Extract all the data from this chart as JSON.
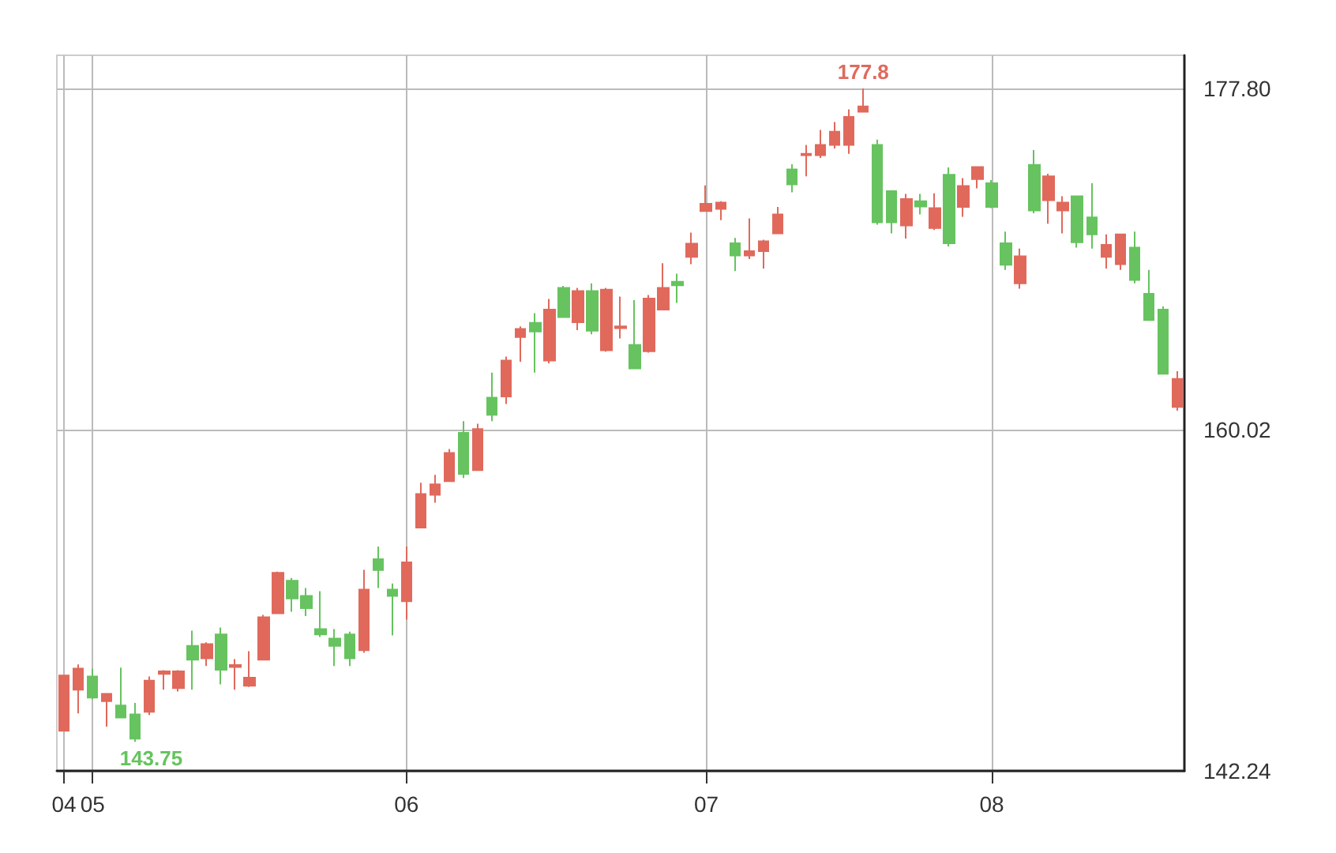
{
  "chart_data": {
    "type": "candlestick",
    "categories": [
      "04",
      null,
      "05",
      null,
      null,
      null,
      null,
      null,
      null,
      null,
      null,
      null,
      null,
      null,
      null,
      null,
      null,
      null,
      null,
      null,
      null,
      null,
      null,
      null,
      "06",
      null,
      null,
      null,
      null,
      null,
      null,
      null,
      null,
      null,
      null,
      null,
      null,
      null,
      null,
      null,
      null,
      null,
      null,
      null,
      null,
      "07",
      null,
      null,
      null,
      null,
      null,
      null,
      null,
      null,
      null,
      null,
      null,
      null,
      null,
      null,
      null,
      null,
      null,
      null,
      null,
      "08",
      null,
      null,
      null,
      null,
      null,
      null,
      null,
      null,
      null,
      null,
      null,
      null,
      null
    ],
    "ohlc": [
      [
        144.33,
        147.21,
        144.33,
        147.21
      ],
      [
        146.47,
        147.79,
        145.23,
        147.57
      ],
      [
        147.16,
        147.57,
        145.97,
        146.06
      ],
      [
        145.87,
        146.25,
        144.55,
        146.25
      ],
      [
        145.65,
        147.62,
        145.02,
        145.02
      ],
      [
        145.18,
        145.78,
        143.75,
        143.92
      ],
      [
        145.32,
        147.16,
        145.15,
        146.94
      ],
      [
        147.29,
        147.49,
        146.47,
        147.43
      ],
      [
        146.55,
        147.49,
        146.38,
        147.43
      ],
      [
        148.75,
        149.55,
        146.47,
        148.03
      ],
      [
        148.11,
        148.94,
        147.7,
        148.85
      ],
      [
        149.35,
        149.71,
        146.75,
        147.51
      ],
      [
        147.65,
        148.06,
        146.47,
        147.76
      ],
      [
        146.67,
        148.48,
        146.61,
        147.1
      ],
      [
        148.03,
        150.37,
        148.03,
        150.25
      ],
      [
        150.45,
        152.62,
        150.45,
        152.56
      ],
      [
        152.15,
        152.29,
        150.53,
        151.22
      ],
      [
        151.36,
        151.77,
        150.31,
        150.72
      ],
      [
        149.63,
        151.6,
        149.22,
        149.35
      ],
      [
        149.13,
        149.63,
        147.7,
        148.75
      ],
      [
        149.35,
        149.49,
        147.7,
        148.11
      ],
      [
        148.53,
        152.72,
        148.39,
        151.69
      ],
      [
        153.27,
        153.93,
        151.77,
        152.7
      ],
      [
        151.69,
        152.01,
        149.3,
        151.36
      ],
      [
        151.08,
        153.93,
        150.12,
        153.11
      ],
      [
        154.92,
        157.25,
        154.92,
        156.67
      ],
      [
        156.62,
        157.66,
        156.21,
        157.17
      ],
      [
        157.34,
        159.01,
        157.34,
        158.81
      ],
      [
        159.86,
        160.46,
        157.5,
        157.72
      ],
      [
        157.91,
        160.33,
        157.91,
        160.05
      ],
      [
        161.69,
        162.99,
        160.46,
        160.79
      ],
      [
        161.75,
        163.83,
        161.36,
        163.62
      ],
      [
        164.85,
        165.4,
        163.56,
        165.27
      ],
      [
        165.59,
        166.09,
        162.99,
        165.13
      ],
      [
        163.62,
        166.83,
        163.48,
        166.28
      ],
      [
        167.41,
        167.51,
        165.89,
        165.89
      ],
      [
        165.62,
        167.41,
        165.21,
        167.24
      ],
      [
        167.24,
        167.65,
        164.99,
        165.18
      ],
      [
        164.16,
        167.41,
        164.08,
        167.32
      ],
      [
        165.31,
        166.96,
        164.77,
        165.4
      ],
      [
        164.44,
        166.77,
        163.21,
        163.21
      ],
      [
        164.11,
        167.04,
        164.03,
        166.85
      ],
      [
        166.28,
        168.69,
        166.28,
        167.41
      ],
      [
        167.73,
        168.15,
        166.63,
        167.54
      ],
      [
        169.02,
        170.29,
        168.64,
        169.71
      ],
      [
        171.41,
        172.75,
        171.41,
        171.79
      ],
      [
        171.52,
        171.93,
        170.94,
        171.85
      ],
      [
        169.73,
        170.01,
        168.28,
        169.1
      ],
      [
        169.1,
        171.03,
        168.91,
        169.32
      ],
      [
        169.32,
        169.92,
        168.42,
        169.84
      ],
      [
        170.25,
        171.63,
        170.25,
        171.24
      ],
      [
        173.58,
        173.85,
        172.39,
        172.8
      ],
      [
        174.32,
        174.86,
        173.22,
        174.4
      ],
      [
        174.32,
        175.64,
        174.18,
        174.86
      ],
      [
        174.86,
        176.05,
        174.67,
        175.55
      ],
      [
        174.86,
        176.71,
        174.4,
        176.32
      ],
      [
        176.59,
        177.8,
        176.59,
        176.87
      ],
      [
        174.86,
        175.14,
        170.7,
        170.83
      ],
      [
        172.45,
        172.45,
        170.25,
        170.83
      ],
      [
        170.66,
        172.31,
        169.98,
        172.04
      ],
      [
        171.93,
        172.31,
        171.24,
        171.65
      ],
      [
        170.53,
        172.34,
        170.42,
        171.57
      ],
      [
        173.3,
        173.69,
        169.57,
        169.73
      ],
      [
        171.63,
        173.13,
        171.11,
        172.72
      ],
      [
        173.08,
        173.71,
        172.59,
        173.71
      ],
      [
        172.86,
        173.03,
        171.57,
        171.63
      ],
      [
        169.73,
        170.34,
        168.34,
        168.61
      ],
      [
        167.65,
        169.46,
        167.37,
        169.05
      ],
      [
        173.82,
        174.59,
        171.3,
        171.44
      ],
      [
        171.98,
        173.36,
        170.75,
        173.22
      ],
      [
        171.44,
        172.18,
        170.25,
        171.85
      ],
      [
        172.18,
        172.18,
        169.51,
        169.79
      ],
      [
        171.08,
        172.86,
        169.46,
        170.2
      ],
      [
        169.02,
        170.2,
        168.42,
        169.65
      ],
      [
        168.64,
        170.2,
        168.34,
        170.2
      ],
      [
        169.51,
        170.34,
        167.65,
        167.82
      ],
      [
        167.1,
        168.34,
        165.73,
        165.73
      ],
      [
        166.28,
        166.44,
        162.93,
        162.93
      ],
      [
        161.2,
        163.07,
        161.01,
        162.66
      ]
    ],
    "colors": [
      "#e0695c",
      "#e0695c",
      "#66c35f",
      "#e0695c",
      "#66c35f",
      "#66c35f",
      "#e0695c",
      "#e0695c",
      "#e0695c",
      "#66c35f",
      "#e0695c",
      "#66c35f",
      "#e0695c",
      "#e0695c",
      "#e0695c",
      "#e0695c",
      "#66c35f",
      "#66c35f",
      "#66c35f",
      "#66c35f",
      "#66c35f",
      "#e0695c",
      "#66c35f",
      "#66c35f",
      "#e0695c",
      "#e0695c",
      "#e0695c",
      "#e0695c",
      "#66c35f",
      "#e0695c",
      "#66c35f",
      "#e0695c",
      "#e0695c",
      "#66c35f",
      "#e0695c",
      "#66c35f",
      "#e0695c",
      "#66c35f",
      "#e0695c",
      "#e0695c",
      "#66c35f",
      "#e0695c",
      "#e0695c",
      "#66c35f",
      "#e0695c",
      "#e0695c",
      "#e0695c",
      "#66c35f",
      "#e0695c",
      "#e0695c",
      "#e0695c",
      "#66c35f",
      "#e0695c",
      "#e0695c",
      "#e0695c",
      "#e0695c",
      "#e0695c",
      "#66c35f",
      "#66c35f",
      "#e0695c",
      "#66c35f",
      "#e0695c",
      "#66c35f",
      "#e0695c",
      "#e0695c",
      "#66c35f",
      "#66c35f",
      "#e0695c",
      "#66c35f",
      "#e0695c",
      "#e0695c",
      "#66c35f",
      "#66c35f",
      "#e0695c",
      "#e0695c",
      "#66c35f",
      "#66c35f",
      "#66c35f",
      "#e0695c"
    ],
    "ylim": [
      142.24,
      179.53
    ],
    "yticks": [
      142.24,
      160.02,
      {
        "value": 177.8,
        "label": "177.80"
      }
    ],
    "grid": true,
    "annotations": [
      "177.8",
      "143.75"
    ]
  }
}
